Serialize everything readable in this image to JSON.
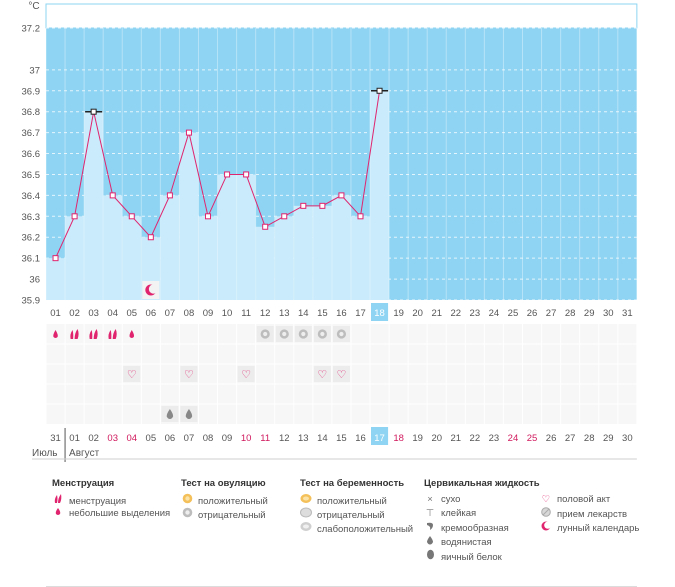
{
  "chart_data": {
    "type": "line",
    "unit_label": "°C",
    "y_ticks": [
      "37.2",
      "37",
      "36.9",
      "36.8",
      "36.7",
      "36.6",
      "36.5",
      "36.4",
      "36.3",
      "36.2",
      "36.1",
      "36",
      "35.9"
    ],
    "ylim": [
      35.9,
      37.2
    ],
    "day_labels": [
      "01",
      "02",
      "03",
      "04",
      "05",
      "06",
      "07",
      "08",
      "09",
      "10",
      "11",
      "12",
      "13",
      "14",
      "15",
      "16",
      "17",
      "18",
      "19",
      "20",
      "21",
      "22",
      "23",
      "24",
      "25",
      "26",
      "27",
      "28",
      "29",
      "30",
      "31"
    ],
    "values": [
      36.1,
      36.3,
      36.8,
      36.4,
      36.3,
      36.2,
      36.4,
      36.7,
      36.3,
      36.5,
      36.5,
      36.25,
      36.3,
      36.35,
      36.35,
      36.4,
      36.3,
      36.9
    ],
    "highlight_day": "18",
    "special_points": [
      "03",
      "18"
    ],
    "moon_day": "06",
    "date_labels": [
      "31",
      "01",
      "02",
      "03",
      "04",
      "05",
      "06",
      "07",
      "08",
      "09",
      "10",
      "11",
      "12",
      "13",
      "14",
      "15",
      "16",
      "17",
      "18",
      "19",
      "20",
      "21",
      "22",
      "23",
      "24",
      "25",
      "26",
      "27",
      "28",
      "29",
      "30"
    ],
    "date_red": [
      "03",
      "04",
      "10",
      "11",
      "18",
      "24",
      "25"
    ],
    "highlight_date": "17",
    "month_left": "Июль",
    "month_right": "Август",
    "menstruation_big_days": [
      "02",
      "03",
      "04"
    ],
    "menstruation_small_days": [
      "01",
      "05"
    ],
    "ovulation_negative_days": [
      "12",
      "13",
      "14",
      "15",
      "16"
    ],
    "intercourse_days": [
      "05",
      "08",
      "11",
      "15",
      "16"
    ],
    "fluid_watery_days": [
      "07",
      "08"
    ],
    "colors": {
      "plot_bg": "#8fd4f3",
      "bar_fill": "#c9ebfb",
      "line": "#e0246e",
      "point_fill": "#ffffff",
      "highlight_cell": "#8fd4f3",
      "red_text": "#d0185c"
    }
  },
  "legend": {
    "menstruation": {
      "title": "Менструация",
      "items": [
        "менструация",
        "небольшие выделения"
      ]
    },
    "ovulation": {
      "title": "Тест на овуляцию",
      "items": [
        "положительный",
        "отрицательный"
      ]
    },
    "pregnancy": {
      "title": "Тест на беременность",
      "items": [
        "положительный",
        "отрицательный",
        "слабоположительный"
      ]
    },
    "fluid": {
      "title": "Цервикальная жидкость",
      "items": [
        "сухо",
        "клейкая",
        "кремообразная",
        "водянистая",
        "яичный белок"
      ]
    },
    "other": {
      "items": [
        "половой акт",
        "прием лекарств",
        "лунный календарь"
      ]
    }
  }
}
